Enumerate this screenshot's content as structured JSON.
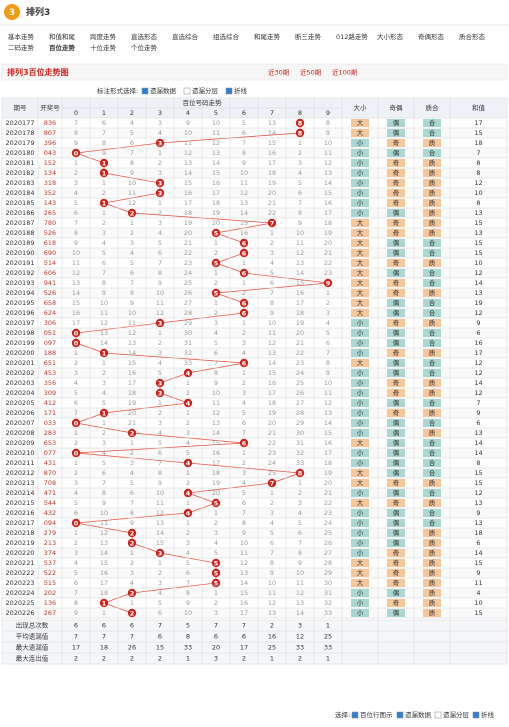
{
  "header": {
    "logo": "3",
    "title": "排列3",
    "active_nav": 13,
    "nav": [
      "基本走势",
      "和值和尾",
      "跨度走势",
      "直选形态",
      "直选综合",
      "组选综合",
      "和尾走势",
      "断三走势",
      "012路走势",
      "大小形态",
      "奇偶形态",
      "质合形态",
      "二码走势",
      "百位走势",
      "十位走势",
      "个位走势"
    ]
  },
  "toolbar": {
    "title": "排列3百位走势图",
    "ranges": [
      "近30期",
      "近50期",
      "近100期"
    ],
    "marks_label": "标注形式选择:",
    "options": [
      "遗漏数据",
      "遗漏分层",
      "折线"
    ]
  },
  "table": {
    "headers": {
      "period": "期号",
      "draw": "开奖号",
      "group": "百位号码走势",
      "digits": [
        0,
        1,
        2,
        3,
        4,
        5,
        6,
        7,
        8,
        9
      ],
      "attrs": [
        "大小",
        "奇偶",
        "质合"
      ],
      "sum": "和值"
    },
    "rows": [
      {
        "p": "2020177",
        "n": "836",
        "m": [
          7,
          6,
          4,
          3,
          9,
          10,
          5,
          13,
          8,
          8
        ],
        "f": [
          "大",
          "偶",
          "合"
        ],
        "s": 17
      },
      {
        "p": "2020178",
        "n": "807",
        "m": [
          8,
          7,
          5,
          4,
          10,
          11,
          6,
          14,
          8,
          9
        ],
        "f": [
          "大",
          "偶",
          "合"
        ],
        "s": 15
      },
      {
        "p": "2020179",
        "n": "396",
        "m": [
          9,
          8,
          6,
          3,
          11,
          12,
          7,
          15,
          1,
          10
        ],
        "f": [
          "小",
          "奇",
          "质"
        ],
        "s": 18
      },
      {
        "p": "2020180",
        "n": "043",
        "m": [
          0,
          9,
          7,
          1,
          12,
          13,
          8,
          16,
          2,
          11
        ],
        "f": [
          "小",
          "偶",
          "合"
        ],
        "s": 7
      },
      {
        "p": "2020181",
        "n": "152",
        "m": [
          1,
          1,
          8,
          2,
          13,
          14,
          9,
          17,
          3,
          12
        ],
        "f": [
          "小",
          "奇",
          "质"
        ],
        "s": 8
      },
      {
        "p": "2020182",
        "n": "134",
        "m": [
          2,
          1,
          9,
          3,
          14,
          15,
          10,
          18,
          4,
          13
        ],
        "f": [
          "小",
          "奇",
          "质"
        ],
        "s": 8
      },
      {
        "p": "2020183",
        "n": "318",
        "m": [
          3,
          1,
          10,
          3,
          15,
          16,
          11,
          19,
          5,
          14
        ],
        "f": [
          "小",
          "奇",
          "质"
        ],
        "s": 12
      },
      {
        "p": "2020184",
        "n": "352",
        "m": [
          4,
          2,
          11,
          3,
          16,
          17,
          12,
          20,
          6,
          15
        ],
        "f": [
          "小",
          "奇",
          "质"
        ],
        "s": 10
      },
      {
        "p": "2020185",
        "n": "143",
        "m": [
          5,
          1,
          12,
          1,
          17,
          18,
          13,
          21,
          7,
          16
        ],
        "f": [
          "小",
          "奇",
          "质"
        ],
        "s": 8
      },
      {
        "p": "2020186",
        "n": "265",
        "m": [
          6,
          1,
          2,
          2,
          18,
          19,
          14,
          22,
          8,
          17
        ],
        "f": [
          "小",
          "偶",
          "质"
        ],
        "s": 13
      },
      {
        "p": "2020187",
        "n": "780",
        "m": [
          7,
          2,
          1,
          3,
          19,
          20,
          15,
          7,
          9,
          18
        ],
        "f": [
          "大",
          "奇",
          "质"
        ],
        "s": 15
      },
      {
        "p": "2020188",
        "n": "526",
        "m": [
          8,
          3,
          2,
          4,
          20,
          5,
          16,
          1,
          10,
          19
        ],
        "f": [
          "大",
          "奇",
          "质"
        ],
        "s": 13
      },
      {
        "p": "2020189",
        "n": "618",
        "m": [
          9,
          4,
          3,
          5,
          21,
          1,
          6,
          2,
          11,
          20
        ],
        "f": [
          "大",
          "偶",
          "合"
        ],
        "s": 15
      },
      {
        "p": "2020190",
        "n": "690",
        "m": [
          10,
          5,
          4,
          6,
          22,
          2,
          6,
          3,
          12,
          21
        ],
        "f": [
          "大",
          "偶",
          "合"
        ],
        "s": 15
      },
      {
        "p": "2020191",
        "n": "514",
        "m": [
          11,
          6,
          5,
          7,
          23,
          5,
          1,
          4,
          13,
          22
        ],
        "f": [
          "大",
          "奇",
          "质"
        ],
        "s": 10
      },
      {
        "p": "2020192",
        "n": "606",
        "m": [
          12,
          7,
          6,
          8,
          24,
          1,
          6,
          5,
          14,
          23
        ],
        "f": [
          "大",
          "偶",
          "合"
        ],
        "s": 12
      },
      {
        "p": "2020193",
        "n": "941",
        "m": [
          13,
          8,
          7,
          9,
          25,
          2,
          1,
          6,
          15,
          9
        ],
        "f": [
          "大",
          "奇",
          "合"
        ],
        "s": 14
      },
      {
        "p": "2020194",
        "n": "526",
        "m": [
          14,
          9,
          8,
          10,
          26,
          5,
          2,
          7,
          16,
          1
        ],
        "f": [
          "大",
          "奇",
          "质"
        ],
        "s": 13
      },
      {
        "p": "2020195",
        "n": "658",
        "m": [
          15,
          10,
          9,
          11,
          27,
          1,
          6,
          8,
          17,
          2
        ],
        "f": [
          "大",
          "偶",
          "合"
        ],
        "s": 19
      },
      {
        "p": "2020196",
        "n": "624",
        "m": [
          16,
          11,
          10,
          12,
          28,
          2,
          6,
          9,
          18,
          3
        ],
        "f": [
          "大",
          "偶",
          "合"
        ],
        "s": 12
      },
      {
        "p": "2020197",
        "n": "306",
        "m": [
          17,
          12,
          11,
          3,
          29,
          3,
          1,
          10,
          19,
          4
        ],
        "f": [
          "小",
          "奇",
          "质"
        ],
        "s": 9
      },
      {
        "p": "2020198",
        "n": "051",
        "m": [
          0,
          13,
          12,
          1,
          30,
          4,
          2,
          11,
          20,
          5
        ],
        "f": [
          "小",
          "偶",
          "合"
        ],
        "s": 6
      },
      {
        "p": "2020199",
        "n": "097",
        "m": [
          0,
          14,
          13,
          2,
          31,
          5,
          3,
          12,
          21,
          6
        ],
        "f": [
          "小",
          "偶",
          "合"
        ],
        "s": 16
      },
      {
        "p": "2020200",
        "n": "188",
        "m": [
          1,
          1,
          14,
          3,
          32,
          6,
          4,
          13,
          22,
          7
        ],
        "f": [
          "小",
          "奇",
          "质"
        ],
        "s": 17
      },
      {
        "p": "2020201",
        "n": "651",
        "m": [
          2,
          1,
          15,
          4,
          33,
          7,
          6,
          14,
          23,
          8
        ],
        "f": [
          "大",
          "偶",
          "合"
        ],
        "s": 12
      },
      {
        "p": "2020202",
        "n": "453",
        "m": [
          3,
          2,
          16,
          5,
          4,
          8,
          1,
          15,
          24,
          9
        ],
        "f": [
          "小",
          "偶",
          "合"
        ],
        "s": 12
      },
      {
        "p": "2020203",
        "n": "356",
        "m": [
          4,
          3,
          17,
          3,
          1,
          9,
          2,
          16,
          25,
          10
        ],
        "f": [
          "小",
          "奇",
          "质"
        ],
        "s": 14
      },
      {
        "p": "2020204",
        "n": "309",
        "m": [
          5,
          4,
          18,
          3,
          2,
          10,
          3,
          17,
          26,
          11
        ],
        "f": [
          "小",
          "奇",
          "质"
        ],
        "s": 12
      },
      {
        "p": "2020205",
        "n": "412",
        "m": [
          6,
          5,
          19,
          1,
          4,
          11,
          4,
          18,
          27,
          12
        ],
        "f": [
          "小",
          "偶",
          "合"
        ],
        "s": 7
      },
      {
        "p": "2020206",
        "n": "171",
        "m": [
          7,
          1,
          20,
          2,
          1,
          12,
          5,
          19,
          28,
          13
        ],
        "f": [
          "小",
          "奇",
          "质"
        ],
        "s": 9
      },
      {
        "p": "2020207",
        "n": "033",
        "m": [
          0,
          1,
          21,
          3,
          2,
          13,
          6,
          20,
          29,
          14
        ],
        "f": [
          "小",
          "偶",
          "合"
        ],
        "s": 6
      },
      {
        "p": "2020208",
        "n": "283",
        "m": [
          1,
          2,
          2,
          4,
          3,
          14,
          7,
          21,
          30,
          15
        ],
        "f": [
          "小",
          "偶",
          "质"
        ],
        "s": 13
      },
      {
        "p": "2020209",
        "n": "653",
        "m": [
          2,
          3,
          1,
          5,
          4,
          15,
          6,
          22,
          31,
          16
        ],
        "f": [
          "大",
          "偶",
          "合"
        ],
        "s": 14
      },
      {
        "p": "2020210",
        "n": "077",
        "m": [
          0,
          4,
          2,
          6,
          5,
          16,
          1,
          23,
          32,
          17
        ],
        "f": [
          "小",
          "偶",
          "合"
        ],
        "s": 14
      },
      {
        "p": "2020211",
        "n": "431",
        "m": [
          1,
          5,
          3,
          7,
          4,
          17,
          2,
          24,
          33,
          18
        ],
        "f": [
          "小",
          "偶",
          "合"
        ],
        "s": 8
      },
      {
        "p": "2020212",
        "n": "870",
        "m": [
          2,
          6,
          4,
          8,
          1,
          18,
          3,
          25,
          8,
          19
        ],
        "f": [
          "大",
          "偶",
          "合"
        ],
        "s": 15
      },
      {
        "p": "2020213",
        "n": "708",
        "m": [
          3,
          7,
          5,
          9,
          2,
          19,
          4,
          7,
          1,
          20
        ],
        "f": [
          "大",
          "奇",
          "质"
        ],
        "s": 15
      },
      {
        "p": "2020214",
        "n": "471",
        "m": [
          4,
          8,
          6,
          10,
          4,
          20,
          5,
          1,
          2,
          21
        ],
        "f": [
          "小",
          "偶",
          "合"
        ],
        "s": 12
      },
      {
        "p": "2020215",
        "n": "544",
        "m": [
          5,
          9,
          7,
          11,
          1,
          5,
          6,
          2,
          3,
          22
        ],
        "f": [
          "大",
          "奇",
          "质"
        ],
        "s": 13
      },
      {
        "p": "2020216",
        "n": "432",
        "m": [
          6,
          10,
          8,
          12,
          4,
          1,
          7,
          3,
          4,
          23
        ],
        "f": [
          "小",
          "偶",
          "合"
        ],
        "s": 9
      },
      {
        "p": "2020217",
        "n": "094",
        "m": [
          0,
          11,
          9,
          13,
          1,
          2,
          8,
          4,
          5,
          24
        ],
        "f": [
          "小",
          "偶",
          "合"
        ],
        "s": 13
      },
      {
        "p": "2020218",
        "n": "279",
        "m": [
          1,
          12,
          2,
          14,
          2,
          3,
          9,
          5,
          6,
          25
        ],
        "f": [
          "小",
          "偶",
          "质"
        ],
        "s": 18
      },
      {
        "p": "2020219",
        "n": "213",
        "m": [
          2,
          13,
          2,
          15,
          3,
          4,
          10,
          6,
          7,
          26
        ],
        "f": [
          "小",
          "偶",
          "质"
        ],
        "s": 6
      },
      {
        "p": "2020220",
        "n": "374",
        "m": [
          3,
          14,
          1,
          3,
          4,
          5,
          11,
          7,
          8,
          27
        ],
        "f": [
          "小",
          "奇",
          "质"
        ],
        "s": 14
      },
      {
        "p": "2020221",
        "n": "537",
        "m": [
          4,
          15,
          2,
          1,
          5,
          5,
          12,
          8,
          9,
          28
        ],
        "f": [
          "大",
          "奇",
          "质"
        ],
        "s": 15
      },
      {
        "p": "2020222",
        "n": "522",
        "m": [
          5,
          16,
          3,
          2,
          6,
          5,
          13,
          9,
          10,
          29
        ],
        "f": [
          "大",
          "奇",
          "质"
        ],
        "s": 9
      },
      {
        "p": "2020223",
        "n": "515",
        "m": [
          6,
          17,
          4,
          3,
          7,
          5,
          14,
          10,
          11,
          30
        ],
        "f": [
          "大",
          "奇",
          "质"
        ],
        "s": 11
      },
      {
        "p": "2020224",
        "n": "202",
        "m": [
          7,
          18,
          2,
          4,
          8,
          1,
          15,
          11,
          12,
          31
        ],
        "f": [
          "小",
          "偶",
          "质"
        ],
        "s": 4
      },
      {
        "p": "2020225",
        "n": "136",
        "m": [
          8,
          1,
          1,
          5,
          9,
          2,
          16,
          12,
          13,
          32
        ],
        "f": [
          "小",
          "奇",
          "质"
        ],
        "s": 10
      },
      {
        "p": "2020226",
        "n": "267",
        "m": [
          9,
          1,
          2,
          6,
          10,
          3,
          17,
          13,
          14,
          33
        ],
        "f": [
          "小",
          "偶",
          "质"
        ],
        "s": 15
      }
    ],
    "stats": [
      {
        "label": "出现总次数",
        "values": [
          6,
          6,
          6,
          7,
          5,
          7,
          7,
          2,
          3,
          1
        ]
      },
      {
        "label": "平均遗漏值",
        "values": [
          7,
          7,
          7,
          6,
          8,
          6,
          6,
          16,
          12,
          25
        ]
      },
      {
        "label": "最大遗漏值",
        "values": [
          17,
          18,
          26,
          15,
          33,
          20,
          17,
          25,
          33,
          33
        ]
      },
      {
        "label": "最大连出值",
        "values": [
          2,
          2,
          2,
          2,
          1,
          3,
          2,
          1,
          2,
          1
        ]
      }
    ]
  },
  "footer": {
    "label": "选择:",
    "options": [
      "百位行图示",
      "遗漏数据",
      "遗漏分层",
      "折线"
    ]
  }
}
